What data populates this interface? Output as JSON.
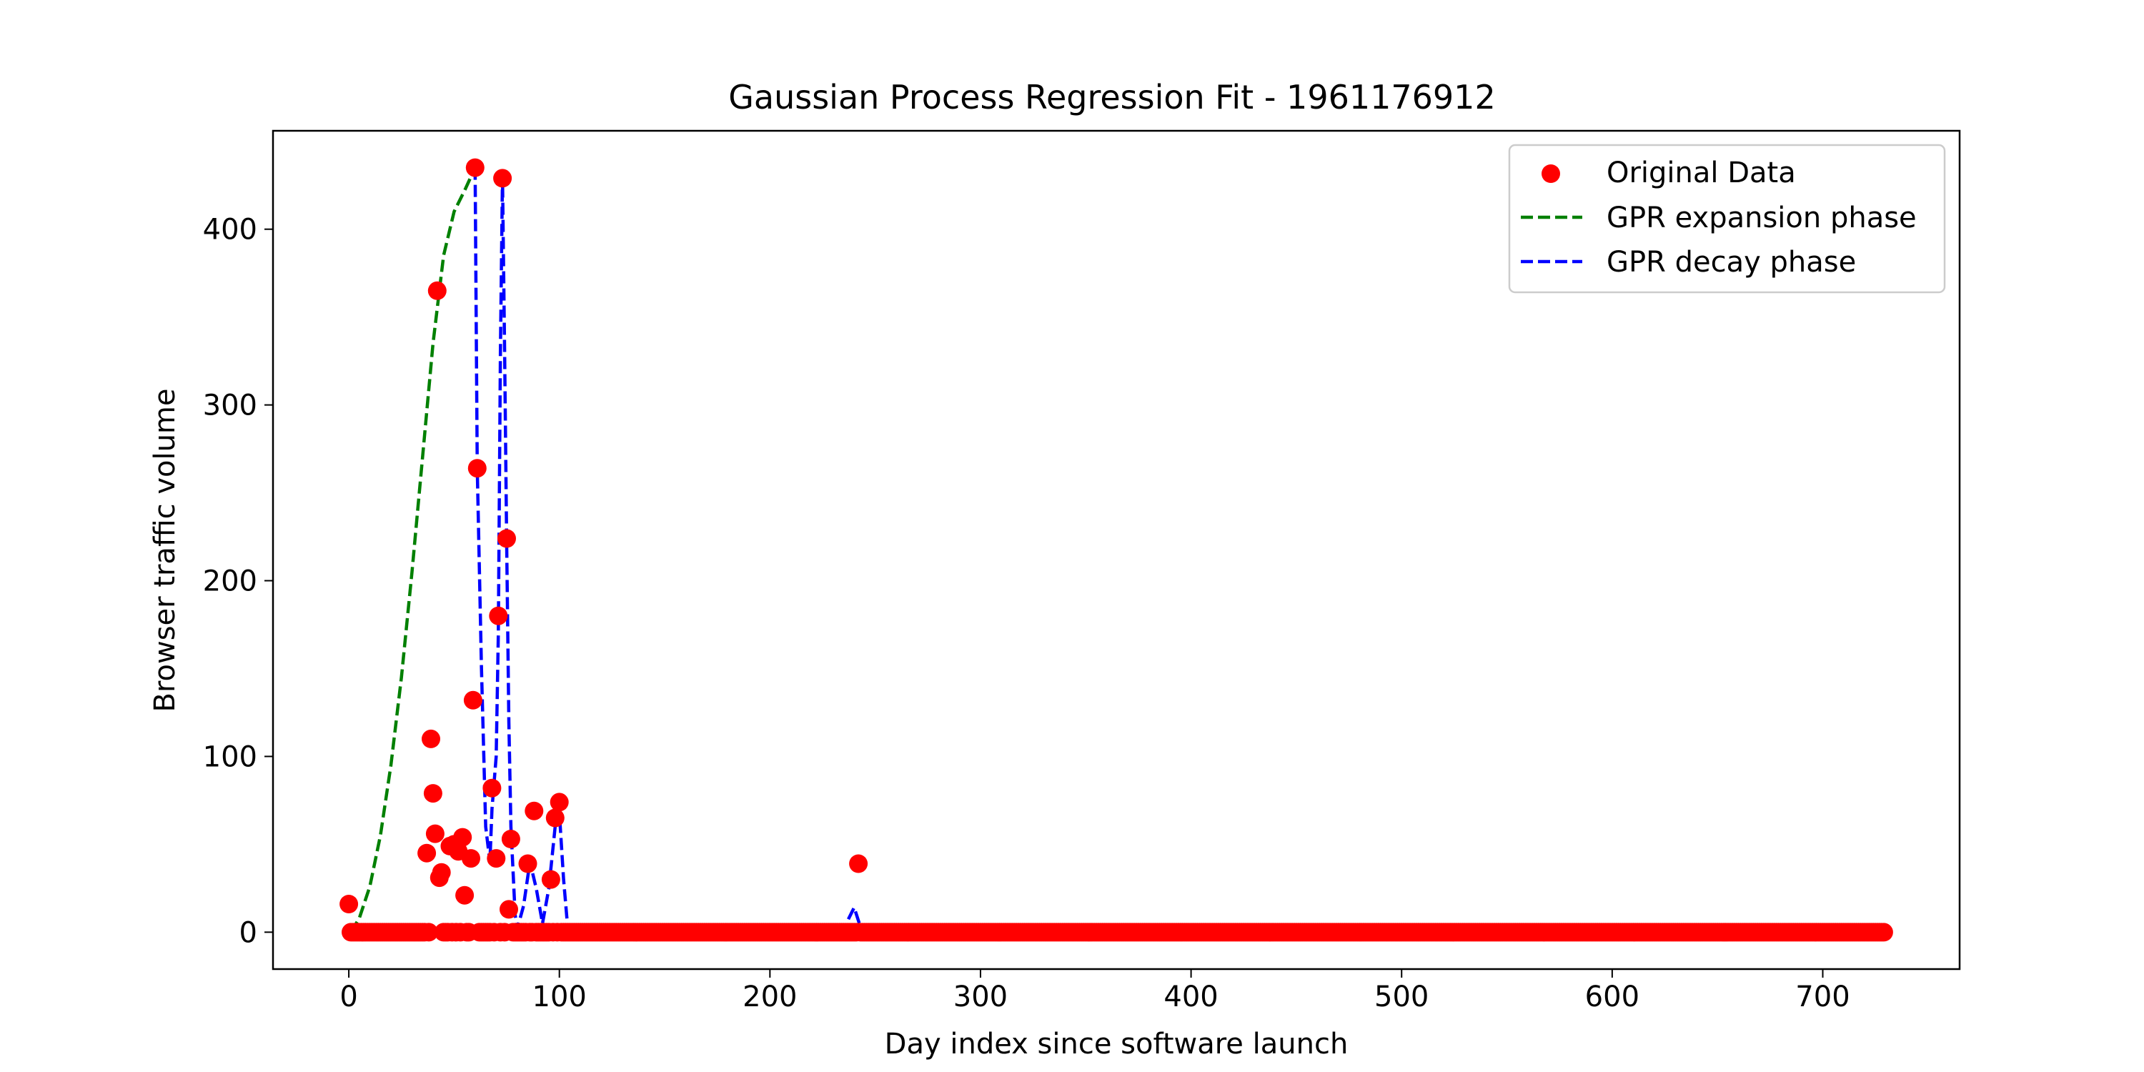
{
  "chart_data": {
    "type": "scatter",
    "title": "Gaussian Process Regression Fit - 1961176912",
    "xlabel": "Day index since software launch",
    "ylabel": "Browser traffic volume",
    "xlim": [
      -36,
      765
    ],
    "ylim": [
      -21,
      456
    ],
    "xticks": [
      0,
      100,
      200,
      300,
      400,
      500,
      600,
      700
    ],
    "yticks": [
      0,
      100,
      200,
      300,
      400
    ],
    "grid": false,
    "legend_position": "top-right",
    "series": [
      {
        "name": "Original Data",
        "kind": "scatter",
        "color": "#ff0000",
        "points": [
          [
            0,
            16
          ],
          [
            37,
            45
          ],
          [
            39,
            110
          ],
          [
            40,
            79
          ],
          [
            41,
            56
          ],
          [
            42,
            365
          ],
          [
            43,
            31
          ],
          [
            44,
            34
          ],
          [
            48,
            49
          ],
          [
            50,
            50
          ],
          [
            52,
            46
          ],
          [
            54,
            54
          ],
          [
            55,
            21
          ],
          [
            58,
            42
          ],
          [
            59,
            132
          ],
          [
            60,
            435
          ],
          [
            61,
            264
          ],
          [
            68,
            82
          ],
          [
            70,
            42
          ],
          [
            71,
            180
          ],
          [
            73,
            429
          ],
          [
            75,
            224
          ],
          [
            76,
            13
          ],
          [
            77,
            53
          ],
          [
            85,
            39
          ],
          [
            88,
            69
          ],
          [
            96,
            30
          ],
          [
            98,
            65
          ],
          [
            100,
            74
          ],
          [
            242,
            39
          ]
        ],
        "zero_days": {
          "from": 1,
          "to": 729,
          "value": 0
        }
      },
      {
        "name": "GPR expansion phase",
        "kind": "line",
        "style": "dashed",
        "color": "#008000",
        "points": [
          [
            1,
            0
          ],
          [
            5,
            8
          ],
          [
            10,
            26
          ],
          [
            15,
            55
          ],
          [
            20,
            95
          ],
          [
            25,
            145
          ],
          [
            30,
            205
          ],
          [
            35,
            270
          ],
          [
            40,
            335
          ],
          [
            45,
            385
          ],
          [
            50,
            410
          ],
          [
            55,
            422
          ],
          [
            60,
            435
          ]
        ]
      },
      {
        "name": "GPR decay phase",
        "kind": "line",
        "style": "dashed",
        "color": "#0000ff",
        "points": [
          [
            60,
            435
          ],
          [
            61,
            264
          ],
          [
            63,
            150
          ],
          [
            65,
            60
          ],
          [
            67,
            40
          ],
          [
            68,
            70
          ],
          [
            70,
            100
          ],
          [
            71,
            170
          ],
          [
            72,
            330
          ],
          [
            73,
            430
          ],
          [
            74,
            330
          ],
          [
            75,
            220
          ],
          [
            76,
            120
          ],
          [
            77,
            60
          ],
          [
            79,
            10
          ],
          [
            80,
            2
          ],
          [
            83,
            15
          ],
          [
            86,
            40
          ],
          [
            89,
            25
          ],
          [
            92,
            5
          ],
          [
            95,
            25
          ],
          [
            98,
            60
          ],
          [
            100,
            68
          ],
          [
            102,
            30
          ],
          [
            104,
            2
          ],
          [
            110,
            2
          ],
          [
            150,
            2
          ],
          [
            200,
            2
          ],
          [
            235,
            2
          ],
          [
            240,
            14
          ],
          [
            243,
            3
          ],
          [
            250,
            1
          ],
          [
            300,
            1
          ],
          [
            400,
            0
          ],
          [
            500,
            0
          ],
          [
            600,
            0
          ],
          [
            729,
            0
          ]
        ]
      }
    ]
  }
}
